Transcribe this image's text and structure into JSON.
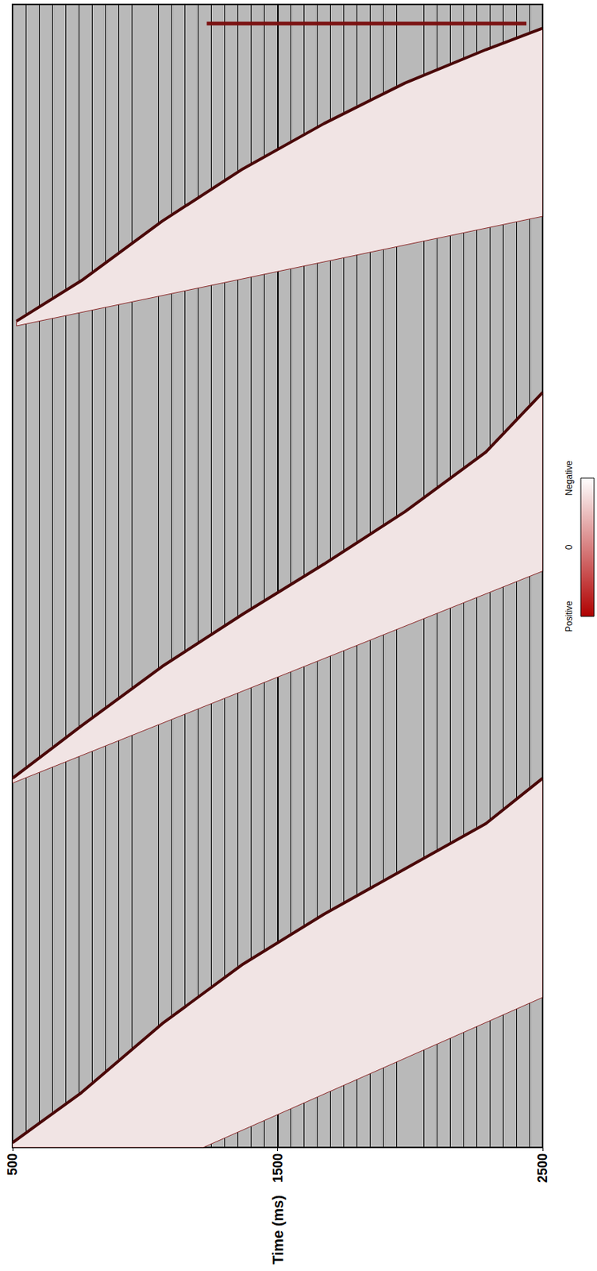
{
  "chart_data": {
    "type": "seismic_gathers",
    "xlabel": "Time (ms)",
    "xlim": [
      500,
      2500
    ],
    "xticks": [
      500,
      1500,
      2500
    ],
    "ylim": [
      0,
      480
    ],
    "tick_labels": "x",
    "grid": true,
    "gathers": [
      {
        "first_break": [
          [
            500,
            2
          ],
          [
            760,
            23
          ],
          [
            1065,
            52
          ],
          [
            1370,
            77
          ],
          [
            1676,
            98
          ],
          [
            1981,
            117
          ],
          [
            2286,
            136
          ],
          [
            2500,
            155
          ]
        ],
        "end": [
          [
            2500,
            63
          ],
          [
            1220,
            0
          ],
          [
            500,
            0
          ]
        ]
      },
      {
        "first_break": [
          [
            500,
            155
          ],
          [
            760,
            177
          ],
          [
            1065,
            202
          ],
          [
            1370,
            224
          ],
          [
            1676,
            245
          ],
          [
            1981,
            267
          ],
          [
            2286,
            292
          ],
          [
            2500,
            317
          ]
        ],
        "end": [
          [
            2500,
            242
          ],
          [
            500,
            153
          ]
        ]
      },
      {
        "first_break": [
          [
            515,
            347
          ],
          [
            760,
            364
          ],
          [
            1065,
            389
          ],
          [
            1370,
            411
          ],
          [
            1676,
            430
          ],
          [
            1981,
            447
          ],
          [
            2286,
            461
          ],
          [
            2500,
            470
          ]
        ],
        "end": [
          [
            2500,
            391
          ],
          [
            515,
            345
          ]
        ]
      }
    ],
    "noisy_traces": [
      {
        "trace": 472,
        "start": 1233,
        "end": 2439
      }
    ],
    "colorbar": {
      "range": [
        -1,
        1
      ],
      "ticks": [
        {
          "value": 1,
          "label": "Positive"
        },
        0,
        {
          "value": -1,
          "label": "Negative"
        }
      ],
      "colors": [
        "#ffffff",
        "#b00000"
      ]
    }
  }
}
